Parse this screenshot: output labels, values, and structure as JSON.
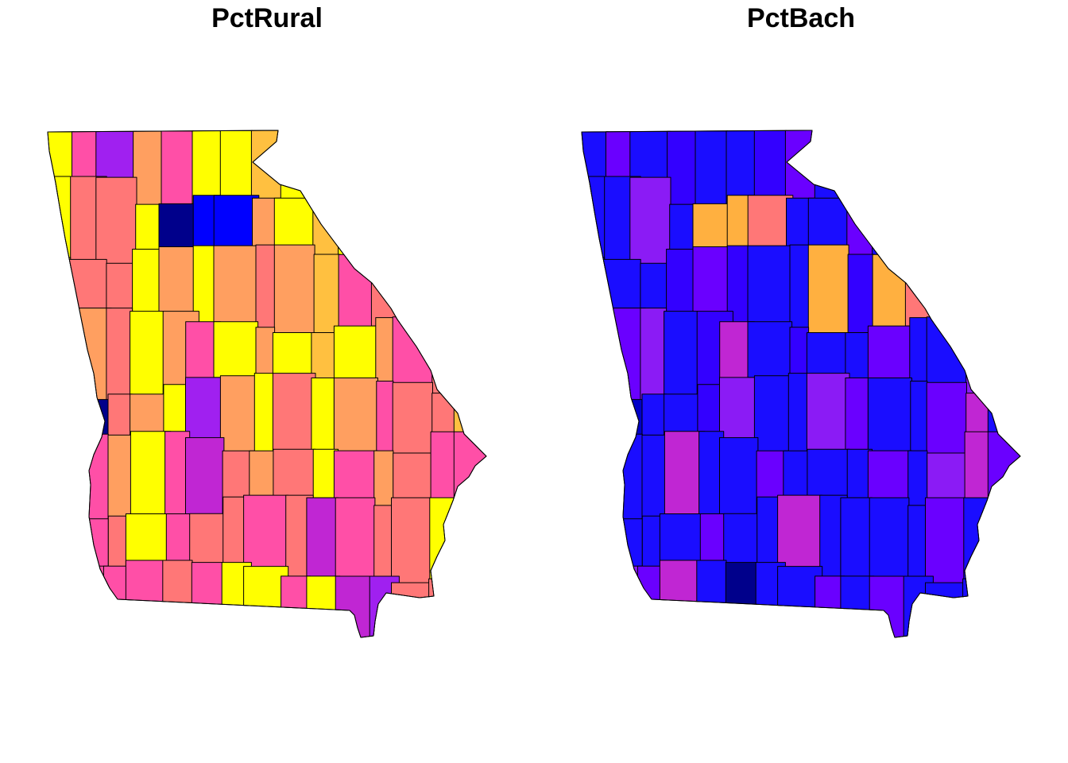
{
  "panels": [
    {
      "title": "PctRural",
      "palette": [
        "#00008B",
        "#0000FF",
        "#A020F0",
        "#C026D3",
        "#FF4FA7",
        "#FF7777",
        "#FF9F60",
        "#FFC040",
        "#FFFF00"
      ],
      "region_palette_index": [
        8,
        4,
        2,
        6,
        4,
        8,
        8,
        7,
        8,
        5,
        4,
        6,
        8,
        7,
        8,
        8,
        5,
        5,
        8,
        0,
        1,
        1,
        6,
        8,
        7,
        8,
        4,
        6,
        8,
        7,
        8,
        5,
        5,
        8,
        6,
        8,
        6,
        5,
        6,
        7,
        4,
        5,
        8,
        2,
        0,
        8,
        6,
        5,
        8,
        6,
        4,
        8,
        6,
        8,
        7,
        8,
        6,
        4,
        5,
        8,
        8,
        0,
        5,
        6,
        8,
        2,
        6,
        8,
        5,
        8,
        6,
        4,
        5,
        5,
        7,
        8,
        4,
        6,
        8,
        4,
        3,
        5,
        6,
        5,
        8,
        4,
        6,
        5,
        4,
        4,
        8,
        4,
        5,
        8,
        4,
        5,
        5,
        4,
        5,
        3,
        4,
        5,
        5,
        8,
        2,
        4,
        4,
        4,
        4,
        5,
        4,
        8,
        8,
        4,
        8,
        3,
        2,
        5,
        5,
        8
      ]
    },
    {
      "title": "PctBach",
      "palette": [
        "#00008B",
        "#0000C8",
        "#1A0DFF",
        "#3300FF",
        "#6A00FF",
        "#8B1BF5",
        "#C026D3",
        "#FF7777",
        "#FFB040",
        "#FFFF00"
      ],
      "region_palette_index": [
        2,
        4,
        2,
        3,
        2,
        2,
        3,
        4,
        2,
        2,
        6,
        4,
        2,
        5,
        4,
        2,
        2,
        5,
        2,
        8,
        8,
        7,
        2,
        2,
        4,
        2,
        4,
        2,
        2,
        4,
        2,
        2,
        2,
        3,
        4,
        3,
        2,
        2,
        8,
        3,
        8,
        7,
        9,
        5,
        1,
        2,
        4,
        5,
        2,
        3,
        6,
        2,
        3,
        2,
        2,
        4,
        2,
        2,
        5,
        2,
        2,
        1,
        2,
        2,
        3,
        5,
        2,
        2,
        5,
        4,
        2,
        2,
        4,
        6,
        2,
        2,
        2,
        2,
        6,
        2,
        2,
        4,
        2,
        2,
        2,
        4,
        2,
        5,
        6,
        4,
        2,
        2,
        2,
        2,
        4,
        2,
        2,
        6,
        2,
        2,
        2,
        2,
        4,
        2,
        2,
        5,
        5,
        4,
        6,
        2,
        0,
        2,
        2,
        4,
        2,
        4,
        2,
        2,
        2,
        4
      ]
    }
  ]
}
